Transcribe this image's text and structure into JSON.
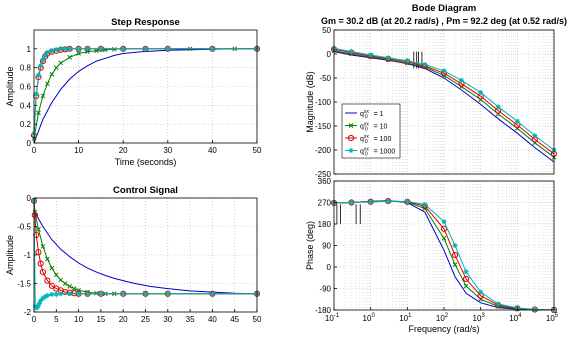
{
  "figure": {
    "background": "#ffffff"
  },
  "chart_data": [
    {
      "id": "step",
      "type": "line",
      "title": "Step Response",
      "xlabel": "Time (seconds)",
      "ylabel": "Amplitude",
      "xlim": [
        0,
        50
      ],
      "ylim": [
        0,
        1.2
      ],
      "xticks": [
        0,
        10,
        20,
        30,
        40,
        50
      ],
      "yticks": [
        0,
        0.2,
        0.4,
        0.6,
        0.8,
        1
      ],
      "grid": true,
      "series": [
        {
          "color": "#0000cc",
          "marker": "none",
          "x": [
            0,
            2,
            4,
            6,
            8,
            10,
            12,
            14,
            16,
            18,
            20,
            22,
            24,
            26,
            28,
            30,
            35,
            40,
            45,
            50
          ],
          "y": [
            0,
            0.25,
            0.43,
            0.57,
            0.68,
            0.76,
            0.82,
            0.87,
            0.9,
            0.93,
            0.95,
            0.96,
            0.97,
            0.975,
            0.98,
            0.985,
            0.99,
            0.995,
            1,
            1
          ]
        },
        {
          "color": "#008000",
          "marker": "x",
          "x": [
            0,
            1,
            2,
            3,
            4,
            5,
            6,
            8,
            10,
            12,
            14,
            16,
            18,
            20,
            25,
            30,
            35,
            40,
            45,
            50
          ],
          "y": [
            0.05,
            0.32,
            0.5,
            0.63,
            0.73,
            0.8,
            0.85,
            0.91,
            0.95,
            0.97,
            0.98,
            0.99,
            0.995,
            1,
            1,
            1,
            1,
            1,
            1,
            1
          ]
        },
        {
          "color": "#e00000",
          "marker": "o",
          "x": [
            0,
            0.5,
            1,
            1.5,
            2,
            2.5,
            3,
            4,
            5,
            6,
            7,
            8,
            10,
            12,
            15,
            20,
            25,
            30,
            40,
            50
          ],
          "y": [
            0.08,
            0.5,
            0.7,
            0.8,
            0.87,
            0.92,
            0.95,
            0.97,
            0.98,
            0.99,
            0.995,
            1,
            1,
            1,
            1,
            1,
            1,
            1,
            1,
            1
          ]
        },
        {
          "color": "#00b5b5",
          "marker": "*",
          "x": [
            0,
            0.5,
            1,
            1.5,
            2,
            2.5,
            3,
            4,
            5,
            6,
            7,
            8,
            10,
            12,
            15,
            20,
            25,
            30,
            40,
            50
          ],
          "y": [
            0.1,
            0.52,
            0.72,
            0.82,
            0.88,
            0.93,
            0.96,
            0.98,
            0.99,
            1,
            1,
            1,
            1,
            1,
            1,
            1,
            1,
            1,
            1,
            1
          ]
        }
      ]
    },
    {
      "id": "control",
      "type": "line",
      "title": "Control Signal",
      "xlabel": "",
      "ylabel": "Amplitude",
      "xlim": [
        0,
        50
      ],
      "ylim": [
        -2,
        0
      ],
      "xticks": [
        0,
        5,
        10,
        15,
        20,
        25,
        30,
        35,
        40,
        45,
        50
      ],
      "yticks": [
        -2,
        -1.5,
        -1,
        -0.5,
        0
      ],
      "grid": true,
      "series": [
        {
          "color": "#0000cc",
          "marker": "none",
          "x": [
            0,
            0.2,
            2,
            4,
            6,
            8,
            10,
            12,
            14,
            16,
            18,
            20,
            22,
            24,
            26,
            28,
            30,
            35,
            40,
            45,
            50
          ],
          "y": [
            -0.05,
            -0.25,
            -0.5,
            -0.73,
            -0.9,
            -1.03,
            -1.14,
            -1.23,
            -1.3,
            -1.36,
            -1.41,
            -1.45,
            -1.49,
            -1.52,
            -1.55,
            -1.57,
            -1.59,
            -1.63,
            -1.65,
            -1.67,
            -1.68
          ]
        },
        {
          "color": "#008000",
          "marker": "x",
          "x": [
            0,
            0.2,
            1,
            2,
            3,
            4,
            5,
            6,
            7,
            8,
            9,
            10,
            12,
            14,
            16,
            18,
            20,
            25,
            30,
            40,
            50
          ],
          "y": [
            -0.05,
            -0.25,
            -0.55,
            -0.85,
            -1.07,
            -1.23,
            -1.35,
            -1.44,
            -1.5,
            -1.55,
            -1.59,
            -1.62,
            -1.65,
            -1.67,
            -1.68,
            -1.68,
            -1.68,
            -1.68,
            -1.68,
            -1.68,
            -1.68
          ]
        },
        {
          "color": "#e00000",
          "marker": "o",
          "x": [
            0,
            0.2,
            0.5,
            1,
            1.5,
            2,
            3,
            4,
            5,
            6,
            7,
            8,
            9,
            10,
            12,
            15,
            20,
            25,
            30,
            40,
            50
          ],
          "y": [
            -0.05,
            -0.3,
            -0.65,
            -0.95,
            -1.15,
            -1.3,
            -1.45,
            -1.54,
            -1.59,
            -1.62,
            -1.65,
            -1.66,
            -1.67,
            -1.68,
            -1.68,
            -1.68,
            -1.68,
            -1.68,
            -1.68,
            -1.68,
            -1.68
          ]
        },
        {
          "color": "#00b5b5",
          "marker": "*",
          "x": [
            0,
            0.3,
            0.6,
            0.9,
            1.2,
            1.5,
            2,
            2.5,
            3,
            4,
            5,
            6,
            8,
            10,
            12,
            15,
            20,
            25,
            30,
            40,
            50
          ],
          "y": [
            -0.05,
            -1.9,
            -1.93,
            -1.9,
            -1.85,
            -1.8,
            -1.76,
            -1.73,
            -1.71,
            -1.69,
            -1.69,
            -1.68,
            -1.68,
            -1.68,
            -1.68,
            -1.68,
            -1.68,
            -1.68,
            -1.68,
            -1.68,
            -1.68
          ]
        }
      ]
    },
    {
      "id": "mag",
      "type": "line",
      "title": "Bode Diagram",
      "subtitle": "Gm = 30.2 dB (at 20.2 rad/s) ,  Pm = 92.2 deg (at 0.52 rad/s)",
      "xlabel": "",
      "ylabel": "Magnitude (dB)",
      "xscale": "log",
      "xlim": [
        0.1,
        100000
      ],
      "ylim": [
        -250,
        50
      ],
      "yticks": [
        -250,
        -200,
        -150,
        -100,
        -50,
        0,
        50
      ],
      "grid": true,
      "legend": "bottom-left",
      "series": [
        {
          "name": "q_0^{xx} = 1",
          "color": "#0000cc",
          "marker": "none",
          "x": [
            0.1,
            0.3,
            1,
            3,
            10,
            30,
            100,
            300,
            1000,
            3000,
            10000,
            30000,
            100000
          ],
          "y": [
            5,
            -2,
            -8,
            -13,
            -20,
            -30,
            -50,
            -75,
            -105,
            -135,
            -165,
            -195,
            -225
          ]
        },
        {
          "name": "q_0^{xx} = 10",
          "color": "#008000",
          "marker": "x",
          "x": [
            0.1,
            0.3,
            1,
            3,
            10,
            30,
            100,
            300,
            1000,
            3000,
            10000,
            30000,
            100000
          ],
          "y": [
            7,
            0,
            -6,
            -12,
            -19,
            -27,
            -45,
            -68,
            -95,
            -125,
            -155,
            -185,
            -215
          ]
        },
        {
          "name": "q_0^{xx} = 100",
          "color": "#e00000",
          "marker": "o",
          "x": [
            0.1,
            0.3,
            1,
            3,
            10,
            30,
            100,
            300,
            1000,
            3000,
            10000,
            30000,
            100000
          ],
          "y": [
            10,
            3,
            -4,
            -10,
            -16,
            -25,
            -40,
            -62,
            -88,
            -118,
            -148,
            -178,
            -208
          ]
        },
        {
          "name": "q_0^{xx} = 1000",
          "color": "#00b5b5",
          "marker": "*",
          "x": [
            0.1,
            0.3,
            1,
            3,
            10,
            30,
            100,
            300,
            1000,
            3000,
            10000,
            30000,
            100000
          ],
          "y": [
            12,
            5,
            -2,
            -8,
            -14,
            -22,
            -35,
            -55,
            -80,
            -110,
            -140,
            -170,
            -200
          ]
        }
      ],
      "markers_x": [
        15,
        18,
        20.2,
        25
      ]
    },
    {
      "id": "phase",
      "type": "line",
      "title": "",
      "xlabel": "Frequency  (rad/s)",
      "ylabel": "Phase (deg)",
      "xscale": "log",
      "xlim": [
        0.1,
        100000
      ],
      "ylim": [
        -180,
        360
      ],
      "xticks": [
        0.1,
        1,
        10,
        100,
        1000,
        10000,
        100000
      ],
      "yticks": [
        -180,
        -90,
        0,
        90,
        180,
        270,
        360
      ],
      "grid": true,
      "series": [
        {
          "color": "#0000cc",
          "marker": "none",
          "x": [
            0.1,
            0.3,
            1,
            3,
            10,
            30,
            100,
            200,
            400,
            1000,
            3000,
            10000,
            30000,
            100000
          ],
          "y": [
            268,
            270,
            275,
            278,
            270,
            230,
            70,
            -40,
            -110,
            -150,
            -170,
            -177,
            -179,
            -180
          ]
        },
        {
          "color": "#008000",
          "marker": "x",
          "x": [
            0.1,
            0.3,
            1,
            3,
            10,
            30,
            100,
            200,
            400,
            1000,
            3000,
            10000,
            30000,
            100000
          ],
          "y": [
            268,
            270,
            274,
            277,
            272,
            245,
            120,
            10,
            -80,
            -135,
            -165,
            -175,
            -179,
            -180
          ]
        },
        {
          "color": "#e00000",
          "marker": "o",
          "x": [
            0.1,
            0.3,
            1,
            3,
            10,
            30,
            100,
            200,
            400,
            1000,
            3000,
            10000,
            30000,
            100000
          ],
          "y": [
            268,
            270,
            273,
            276,
            273,
            255,
            160,
            50,
            -50,
            -120,
            -160,
            -173,
            -178,
            -180
          ]
        },
        {
          "color": "#00b5b5",
          "marker": "*",
          "x": [
            0.1,
            0.3,
            1,
            3,
            10,
            30,
            100,
            200,
            400,
            1000,
            3000,
            10000,
            30000,
            100000
          ],
          "y": [
            268,
            270,
            272,
            275,
            274,
            262,
            190,
            90,
            -20,
            -105,
            -155,
            -171,
            -178,
            -180
          ]
        }
      ],
      "markers_x": [
        0.12,
        0.15,
        0.4,
        0.52
      ]
    }
  ]
}
